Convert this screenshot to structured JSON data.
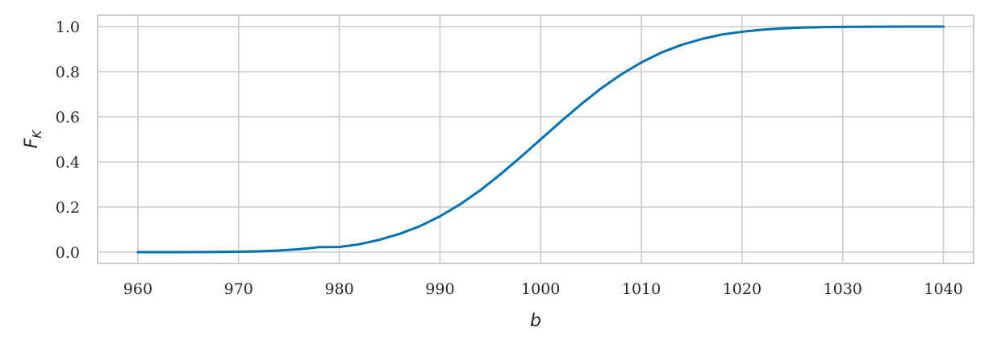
{
  "chart_data": {
    "type": "line",
    "title": "",
    "xlabel": "b",
    "ylabel": {
      "main": "F",
      "sub": "K"
    },
    "xlim": [
      956,
      1043
    ],
    "ylim": [
      -0.05,
      1.05
    ],
    "xticks": [
      960,
      970,
      980,
      990,
      1000,
      1010,
      1020,
      1030,
      1040
    ],
    "yticks": [
      "0.0",
      "0.2",
      "0.4",
      "0.6",
      "0.8",
      "1.0"
    ],
    "grid": true,
    "legend": "none",
    "colors": {
      "line": "#0072b2",
      "grid": "#cccccc",
      "frame": "#cccccc",
      "text": "#262626"
    },
    "series": [
      {
        "x": [
          960,
          962,
          964,
          966,
          968,
          970,
          972,
          974,
          976,
          978,
          980,
          982,
          984,
          986,
          988,
          990,
          992,
          994,
          996,
          998,
          1000,
          1002,
          1004,
          1006,
          1008,
          1010,
          1012,
          1014,
          1016,
          1018,
          1020,
          1022,
          1024,
          1026,
          1028,
          1030,
          1032,
          1034,
          1036,
          1038,
          1040
        ],
        "y": [
          3e-05,
          7e-05,
          0.00017,
          0.0004,
          0.00088,
          0.0019,
          0.0038,
          0.0072,
          0.0128,
          0.0222,
          0.0228,
          0.035,
          0.055,
          0.081,
          0.115,
          0.159,
          0.212,
          0.274,
          0.345,
          0.421,
          0.5,
          0.579,
          0.655,
          0.726,
          0.788,
          0.841,
          0.885,
          0.919,
          0.945,
          0.965,
          0.977,
          0.986,
          0.992,
          0.9956,
          0.9976,
          0.9987,
          0.9993,
          0.9997,
          0.9998,
          0.9999,
          1.0
        ]
      }
    ]
  }
}
